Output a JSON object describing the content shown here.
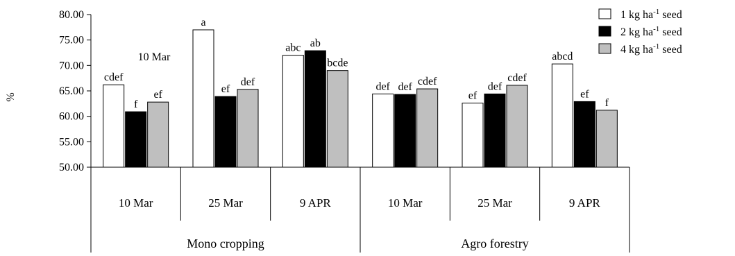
{
  "chart_data": {
    "type": "bar",
    "ylabel": "%",
    "ylim": [
      50,
      80
    ],
    "yticks": [
      "50.00",
      "55.00",
      "60.00",
      "65.00",
      "70.00",
      "75.00",
      "80.00"
    ],
    "grid": false,
    "legend_position": "top-right",
    "groups": [
      {
        "label": "Mono cropping",
        "subcategories": [
          "10 Mar",
          "25 Mar",
          "9 APR"
        ]
      },
      {
        "label": "Agro forestry",
        "subcategories": [
          "10 Mar",
          "25 Mar",
          "9 APR"
        ]
      }
    ],
    "categories": [
      "10 Mar",
      "25 Mar",
      "9 APR",
      "10 Mar",
      "25 Mar",
      "9 APR"
    ],
    "series": [
      {
        "name": "1 kg ha-1 seed",
        "legend_text": "1 kg ha",
        "legend_sup": "-1",
        "legend_suffix": " seed",
        "color": "#ffffff",
        "values": [
          66.2,
          77.0,
          72.0,
          64.4,
          62.6,
          70.3
        ],
        "labels": [
          "cdef",
          "a",
          "abc",
          "def",
          "ef",
          "abcd"
        ]
      },
      {
        "name": "2 kg ha-1 seed",
        "legend_text": "2 kg ha",
        "legend_sup": "-1",
        "legend_suffix": " seed",
        "color": "#000000",
        "values": [
          60.9,
          63.9,
          72.9,
          64.3,
          64.4,
          62.9
        ],
        "labels": [
          "f",
          "ef",
          "ab",
          "def",
          "def",
          "ef"
        ]
      },
      {
        "name": "4 kg ha-1 seed",
        "legend_text": "4 kg ha",
        "legend_sup": "-1",
        "legend_suffix": " seed",
        "color": "#bfbfbf",
        "values": [
          62.8,
          65.3,
          69.0,
          65.4,
          66.1,
          61.2
        ],
        "labels": [
          "ef",
          "def",
          "bcde",
          "cdef",
          "cdef",
          "f"
        ]
      }
    ],
    "annotations": [
      "10 Mar"
    ]
  }
}
